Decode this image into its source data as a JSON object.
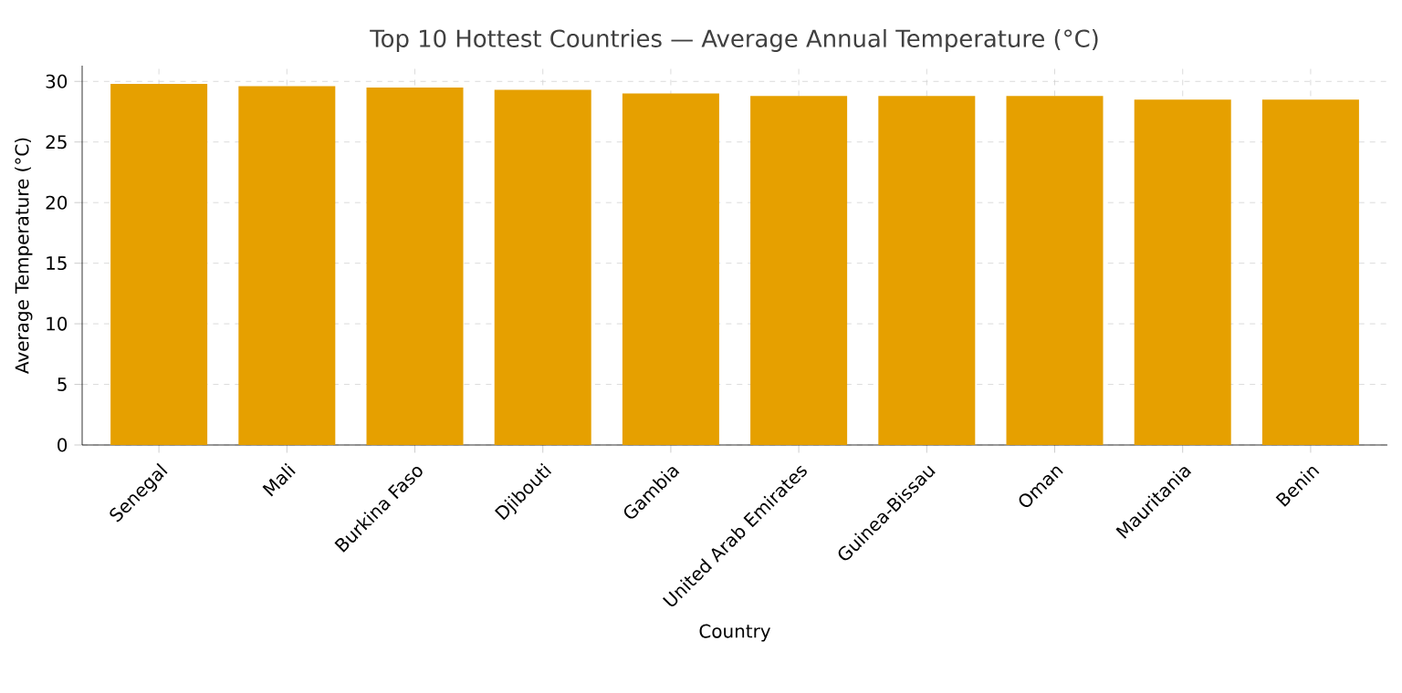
{
  "chart_data": {
    "type": "bar",
    "title": "Top 10 Hottest Countries — Average Annual Temperature (°C)",
    "xlabel": "Country",
    "ylabel": "Average Temperature (°C)",
    "categories": [
      "Senegal",
      "Mali",
      "Burkina Faso",
      "Djibouti",
      "Gambia",
      "United Arab Emirates",
      "Guinea-Bissau",
      "Oman",
      "Mauritania",
      "Benin"
    ],
    "values": [
      29.8,
      29.6,
      29.5,
      29.3,
      29.0,
      28.8,
      28.8,
      28.8,
      28.5,
      28.5
    ],
    "color": "#e6a000",
    "ylim": [
      0,
      31.3
    ],
    "yticks": [
      0,
      5,
      10,
      15,
      20,
      25,
      30
    ],
    "grid": true
  }
}
